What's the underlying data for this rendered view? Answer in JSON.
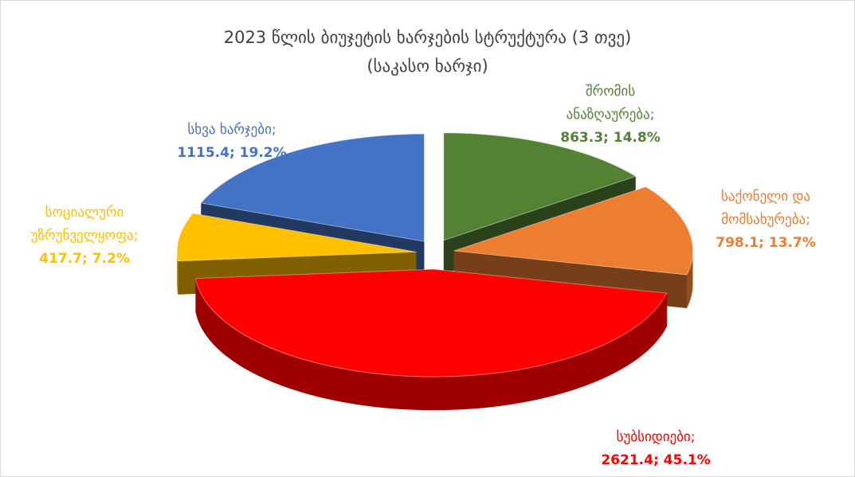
{
  "chart_data": {
    "type": "pie3d",
    "title": "2023 წლის ბიუჯეტის ხარჯების სტრუქტურა (3 თვე)",
    "subtitle": "(საკასო ხარჯი)",
    "categories": [
      "შრომის ანაზღაურება;",
      "საქონელი და მომსახურება;",
      "სუბსიდიები;",
      "სოციალური უზრუნველყოფა;",
      "სხვა ხარჯები;"
    ],
    "values": [
      863.3,
      798.1,
      2621.4,
      417.7,
      1115.4
    ],
    "value_labels": [
      "863.3; 14.8%",
      "798.1; 13.7%",
      "2621.4; 45.1%",
      "417.7; 7.2%",
      "1115.4; 19.2%"
    ],
    "colors": [
      "#548235",
      "#ed7d31",
      "#ff0000",
      "#ffc000",
      "#4472c4"
    ]
  }
}
